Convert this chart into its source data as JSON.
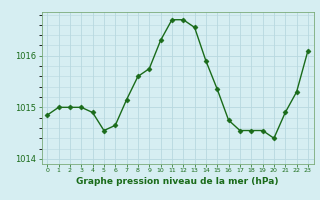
{
  "x": [
    0,
    1,
    2,
    3,
    4,
    5,
    6,
    7,
    8,
    9,
    10,
    11,
    12,
    13,
    14,
    15,
    16,
    17,
    18,
    19,
    20,
    21,
    22,
    23
  ],
  "y": [
    1014.85,
    1015.0,
    1015.0,
    1015.0,
    1014.9,
    1014.55,
    1014.65,
    1015.15,
    1015.6,
    1015.75,
    1016.3,
    1016.7,
    1016.7,
    1016.55,
    1015.9,
    1015.35,
    1014.75,
    1014.55,
    1014.55,
    1014.55,
    1014.4,
    1014.9,
    1015.3,
    1016.1
  ],
  "line_color": "#1a6b1a",
  "marker": "D",
  "marker_size": 2.5,
  "bg_color": "#d6eef2",
  "grid_color": "#b8d8df",
  "axis_color": "#1a6b1a",
  "xlabel": "Graphe pression niveau de la mer (hPa)",
  "xlabel_fontsize": 6.5,
  "xlabel_weight": "bold",
  "yticks": [
    1014,
    1015,
    1016
  ],
  "ylim": [
    1013.9,
    1016.85
  ],
  "xlim": [
    -0.5,
    23.5
  ],
  "xtick_labels": [
    "0",
    "1",
    "2",
    "3",
    "4",
    "5",
    "6",
    "7",
    "8",
    "9",
    "10",
    "11",
    "12",
    "13",
    "14",
    "15",
    "16",
    "17",
    "18",
    "19",
    "20",
    "21",
    "22",
    "23"
  ]
}
